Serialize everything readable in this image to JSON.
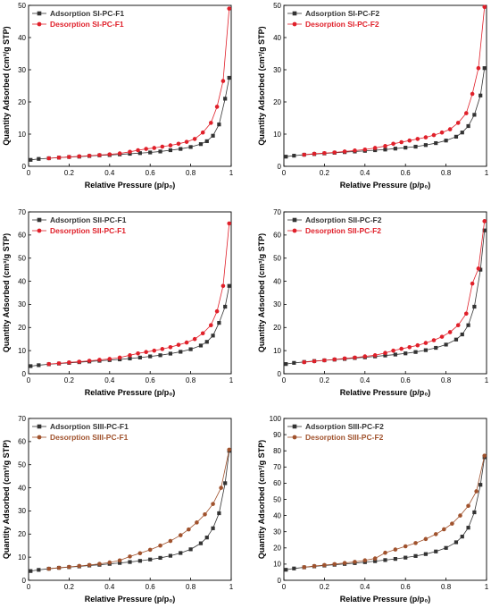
{
  "chart_data": [
    {
      "type": "line",
      "xlabel": "Relative Pressure (p/p₀)",
      "ylabel": "Quantity Adsorbed (cm³/g STP)",
      "xlim": [
        0,
        1
      ],
      "ylim": [
        0,
        50
      ],
      "xticks": [
        "0",
        "0.2",
        "0.4",
        "0.6",
        "0.8",
        "1"
      ],
      "yticks": [
        "0",
        "10",
        "20",
        "30",
        "40",
        "50"
      ],
      "legend_position": "top-left",
      "series": [
        {
          "name": "Adsorption SI-PC-F1",
          "color": "#333333",
          "marker": "square",
          "x": [
            0.01,
            0.05,
            0.1,
            0.15,
            0.2,
            0.25,
            0.3,
            0.35,
            0.4,
            0.45,
            0.5,
            0.55,
            0.6,
            0.65,
            0.7,
            0.75,
            0.8,
            0.85,
            0.88,
            0.91,
            0.94,
            0.97,
            0.99
          ],
          "y": [
            2.0,
            2.3,
            2.5,
            2.7,
            2.9,
            3.0,
            3.2,
            3.4,
            3.5,
            3.7,
            3.9,
            4.1,
            4.3,
            4.6,
            5.0,
            5.4,
            6.0,
            6.9,
            7.8,
            9.5,
            13.0,
            21.0,
            27.5
          ]
        },
        {
          "name": "Desorption SI-PC-F1",
          "color": "#e0202a",
          "marker": "circle",
          "x": [
            0.99,
            0.96,
            0.93,
            0.9,
            0.86,
            0.82,
            0.78,
            0.74,
            0.7,
            0.66,
            0.62,
            0.58,
            0.54,
            0.5,
            0.45,
            0.4,
            0.35,
            0.3,
            0.25,
            0.2,
            0.15,
            0.1
          ],
          "y": [
            49.0,
            26.5,
            18.5,
            13.5,
            10.5,
            8.5,
            7.6,
            7.0,
            6.5,
            6.1,
            5.7,
            5.4,
            5.0,
            4.5,
            4.0,
            3.7,
            3.5,
            3.3,
            3.1,
            2.9,
            2.7,
            2.5
          ]
        }
      ]
    },
    {
      "type": "line",
      "xlabel": "Relative Pressure (p/p₀)",
      "ylabel": "Quantity Adsorbed (cm³/g STP)",
      "xlim": [
        0,
        1
      ],
      "ylim": [
        0,
        50
      ],
      "xticks": [
        "0",
        "0.2",
        "0.4",
        "0.6",
        "0.8",
        "1"
      ],
      "yticks": [
        "0",
        "10",
        "20",
        "30",
        "40",
        "50"
      ],
      "legend_position": "top-left",
      "series": [
        {
          "name": "Adsorption SI-PC-F2",
          "color": "#333333",
          "marker": "square",
          "x": [
            0.01,
            0.05,
            0.1,
            0.15,
            0.2,
            0.25,
            0.3,
            0.35,
            0.4,
            0.45,
            0.5,
            0.55,
            0.6,
            0.65,
            0.7,
            0.75,
            0.8,
            0.85,
            0.88,
            0.91,
            0.94,
            0.97,
            0.99
          ],
          "y": [
            3.0,
            3.3,
            3.6,
            3.8,
            4.0,
            4.2,
            4.4,
            4.6,
            4.8,
            5.0,
            5.2,
            5.5,
            5.8,
            6.1,
            6.6,
            7.2,
            8.0,
            9.2,
            10.5,
            12.5,
            16.0,
            22.0,
            30.5
          ]
        },
        {
          "name": "Desorption SI-PC-F2",
          "color": "#e0202a",
          "marker": "circle",
          "x": [
            0.99,
            0.96,
            0.93,
            0.9,
            0.86,
            0.82,
            0.78,
            0.74,
            0.7,
            0.66,
            0.62,
            0.58,
            0.54,
            0.5,
            0.45,
            0.4,
            0.35,
            0.3,
            0.25,
            0.2,
            0.15,
            0.1
          ],
          "y": [
            49.5,
            30.5,
            22.5,
            16.5,
            13.5,
            11.5,
            10.5,
            9.7,
            9.0,
            8.5,
            8.0,
            7.5,
            7.0,
            6.3,
            5.7,
            5.2,
            4.9,
            4.6,
            4.3,
            4.1,
            3.9,
            3.6
          ]
        }
      ]
    },
    {
      "type": "line",
      "xlabel": "Relative Pressure (p/p₀)",
      "ylabel": "Quantity Adsorbed (cm³/g STP)",
      "xlim": [
        0,
        1
      ],
      "ylim": [
        0,
        70
      ],
      "xticks": [
        "0",
        "0.2",
        "0.4",
        "0.6",
        "0.8",
        "1"
      ],
      "yticks": [
        "0",
        "10",
        "20",
        "30",
        "40",
        "50",
        "60",
        "70"
      ],
      "legend_position": "top-left",
      "series": [
        {
          "name": "Adsorption SII-PC-F1",
          "color": "#333333",
          "marker": "square",
          "x": [
            0.01,
            0.05,
            0.1,
            0.15,
            0.2,
            0.25,
            0.3,
            0.35,
            0.4,
            0.45,
            0.5,
            0.55,
            0.6,
            0.65,
            0.7,
            0.75,
            0.8,
            0.85,
            0.88,
            0.91,
            0.94,
            0.97,
            0.99
          ],
          "y": [
            3.3,
            3.7,
            4.1,
            4.4,
            4.7,
            5.0,
            5.3,
            5.6,
            5.9,
            6.2,
            6.6,
            7.0,
            7.5,
            8.0,
            8.7,
            9.5,
            10.6,
            12.2,
            13.8,
            16.5,
            22.0,
            29.0,
            38.0
          ]
        },
        {
          "name": "Desorption SII-PC-F1",
          "color": "#e0202a",
          "marker": "circle",
          "x": [
            0.99,
            0.96,
            0.93,
            0.9,
            0.86,
            0.82,
            0.78,
            0.74,
            0.7,
            0.66,
            0.62,
            0.58,
            0.54,
            0.5,
            0.45,
            0.4,
            0.35,
            0.3,
            0.25,
            0.2,
            0.15,
            0.1
          ],
          "y": [
            65.0,
            38.0,
            27.0,
            21.0,
            17.5,
            15.0,
            13.5,
            12.5,
            11.5,
            10.7,
            10.0,
            9.4,
            8.8,
            8.0,
            7.0,
            6.4,
            6.0,
            5.6,
            5.2,
            4.9,
            4.5,
            4.2
          ]
        }
      ]
    },
    {
      "type": "line",
      "xlabel": "Relative Pressure (p/p₀)",
      "ylabel": "Quantity Adsorbed (cm³/g STP)",
      "xlim": [
        0,
        1
      ],
      "ylim": [
        0,
        70
      ],
      "xticks": [
        "0",
        "0.2",
        "0.4",
        "0.6",
        "0.8",
        "1"
      ],
      "yticks": [
        "0",
        "10",
        "20",
        "30",
        "40",
        "50",
        "60",
        "70"
      ],
      "legend_position": "top-left",
      "series": [
        {
          "name": "Adsorption SII-PC-F2",
          "color": "#333333",
          "marker": "square",
          "x": [
            0.01,
            0.05,
            0.1,
            0.15,
            0.2,
            0.25,
            0.3,
            0.35,
            0.4,
            0.45,
            0.5,
            0.55,
            0.6,
            0.65,
            0.7,
            0.75,
            0.8,
            0.85,
            0.88,
            0.91,
            0.94,
            0.97,
            0.99
          ],
          "y": [
            4.2,
            4.7,
            5.1,
            5.5,
            5.8,
            6.1,
            6.4,
            6.8,
            7.1,
            7.5,
            7.9,
            8.3,
            8.8,
            9.4,
            10.2,
            11.2,
            12.6,
            14.8,
            17.0,
            21.0,
            29.0,
            45.0,
            62.0
          ]
        },
        {
          "name": "Desorption SII-PC-F2",
          "color": "#e0202a",
          "marker": "circle",
          "x": [
            0.99,
            0.96,
            0.93,
            0.9,
            0.86,
            0.82,
            0.78,
            0.74,
            0.7,
            0.66,
            0.62,
            0.58,
            0.54,
            0.5,
            0.45,
            0.4,
            0.35,
            0.3,
            0.25,
            0.2,
            0.15,
            0.1
          ],
          "y": [
            66.0,
            45.5,
            39.0,
            26.0,
            21.0,
            18.0,
            16.0,
            14.5,
            13.3,
            12.3,
            11.5,
            10.8,
            10.0,
            9.0,
            8.0,
            7.5,
            7.0,
            6.6,
            6.2,
            5.8,
            5.4,
            5.0
          ]
        }
      ]
    },
    {
      "type": "line",
      "xlabel": "Relative Pressure (p/p₀)",
      "ylabel": "Quantity Adsorbed (cm³/g STP)",
      "xlim": [
        0,
        1
      ],
      "ylim": [
        0,
        70
      ],
      "xticks": [
        "0",
        "0.2",
        "0.4",
        "0.6",
        "0.8",
        "1"
      ],
      "yticks": [
        "0",
        "10",
        "20",
        "30",
        "40",
        "50",
        "60",
        "70"
      ],
      "legend_position": "top-left",
      "series": [
        {
          "name": "Adsorption SIII-PC-F1",
          "color": "#333333",
          "marker": "square",
          "x": [
            0.01,
            0.05,
            0.1,
            0.15,
            0.2,
            0.25,
            0.3,
            0.35,
            0.4,
            0.45,
            0.5,
            0.55,
            0.6,
            0.65,
            0.7,
            0.75,
            0.8,
            0.85,
            0.88,
            0.91,
            0.94,
            0.97,
            0.99
          ],
          "y": [
            4.0,
            4.5,
            5.0,
            5.4,
            5.7,
            6.0,
            6.4,
            6.7,
            7.1,
            7.5,
            7.9,
            8.4,
            9.0,
            9.7,
            10.6,
            11.8,
            13.4,
            16.0,
            18.5,
            22.5,
            29.0,
            42.0,
            56.0
          ]
        },
        {
          "name": "Desorption SIII-PC-F1",
          "color": "#a0522d",
          "marker": "circle",
          "x": [
            0.99,
            0.95,
            0.91,
            0.87,
            0.83,
            0.79,
            0.75,
            0.7,
            0.65,
            0.6,
            0.55,
            0.5,
            0.45,
            0.4,
            0.35,
            0.3,
            0.25,
            0.2,
            0.15,
            0.1
          ],
          "y": [
            56.5,
            40.0,
            33.0,
            28.5,
            25.0,
            22.0,
            19.5,
            17.0,
            15.0,
            13.2,
            11.7,
            10.3,
            8.6,
            7.7,
            7.1,
            6.6,
            6.2,
            5.8,
            5.4,
            5.0
          ]
        }
      ]
    },
    {
      "type": "line",
      "xlabel": "Relative Pressure (p/p₀)",
      "ylabel": "Quantity Adsorbed (cm³/g STP)",
      "xlim": [
        0,
        1
      ],
      "ylim": [
        0,
        100
      ],
      "xticks": [
        "0",
        "0.2",
        "0.4",
        "0.6",
        "0.8",
        "1"
      ],
      "yticks": [
        "0",
        "10",
        "20",
        "30",
        "40",
        "50",
        "60",
        "70",
        "80",
        "90",
        "100"
      ],
      "legend_position": "top-left",
      "series": [
        {
          "name": "Adsorption SIII-PC-F2",
          "color": "#333333",
          "marker": "square",
          "x": [
            0.01,
            0.05,
            0.1,
            0.15,
            0.2,
            0.25,
            0.3,
            0.35,
            0.4,
            0.45,
            0.5,
            0.55,
            0.6,
            0.65,
            0.7,
            0.75,
            0.8,
            0.85,
            0.88,
            0.91,
            0.94,
            0.97,
            0.99
          ],
          "y": [
            6.5,
            7.3,
            8.0,
            8.6,
            9.1,
            9.6,
            10.1,
            10.6,
            11.2,
            11.8,
            12.5,
            13.2,
            14.0,
            15.0,
            16.2,
            17.8,
            20.0,
            23.5,
            27.0,
            32.5,
            42.0,
            59.0,
            76.0
          ]
        },
        {
          "name": "Desorption SIII-PC-F2",
          "color": "#a0522d",
          "marker": "circle",
          "x": [
            0.99,
            0.95,
            0.91,
            0.87,
            0.83,
            0.79,
            0.75,
            0.7,
            0.65,
            0.6,
            0.55,
            0.5,
            0.45,
            0.4,
            0.35,
            0.3,
            0.25,
            0.2,
            0.15,
            0.1
          ],
          "y": [
            77.0,
            55.0,
            46.0,
            40.0,
            35.0,
            31.5,
            28.5,
            25.5,
            23.0,
            21.0,
            19.0,
            17.0,
            13.5,
            12.3,
            11.4,
            10.7,
            10.0,
            9.4,
            8.8,
            8.1
          ]
        }
      ]
    }
  ]
}
